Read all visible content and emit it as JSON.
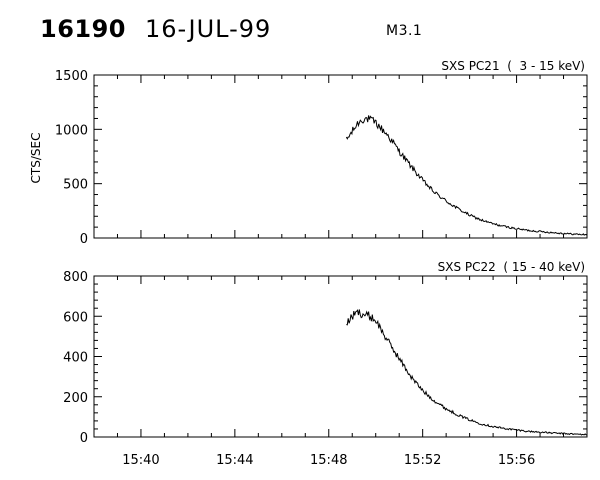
{
  "header": {
    "event_id": "16190",
    "date": "16-JUL-99",
    "flare_class": "M3.1"
  },
  "ylabel": "CTS/SEC",
  "x_tick_labels": [
    "15:40",
    "15:44",
    "15:48",
    "15:52",
    "15:56"
  ],
  "chart_data": [
    {
      "type": "line",
      "title": "SXS PC21  (  3 - 15 keV)",
      "ylabel": "CTS/SEC",
      "xlabel": "",
      "xlim": [
        "15:38",
        "15:59"
      ],
      "ylim": [
        0,
        1500
      ],
      "y_ticks": [
        0,
        500,
        1000,
        1500
      ],
      "x": [
        "15:48:45",
        "15:49:00",
        "15:49:15",
        "15:49:30",
        "15:49:45",
        "15:50:00",
        "15:50:30",
        "15:51:00",
        "15:51:30",
        "15:52:00",
        "15:52:30",
        "15:53:00",
        "15:53:30",
        "15:54:00",
        "15:54:30",
        "15:55:00",
        "15:55:30",
        "15:56:00",
        "15:56:30",
        "15:57:00",
        "15:57:30",
        "15:58:00",
        "15:58:30",
        "15:59:00"
      ],
      "values": [
        900,
        980,
        1060,
        1100,
        1090,
        1060,
        950,
        800,
        660,
        530,
        420,
        340,
        270,
        210,
        165,
        130,
        105,
        85,
        70,
        60,
        50,
        42,
        35,
        30
      ]
    },
    {
      "type": "line",
      "title": "SXS PC22  ( 15 - 40 keV)",
      "ylabel": "",
      "xlabel": "",
      "xlim": [
        "15:38",
        "15:59"
      ],
      "ylim": [
        0,
        800
      ],
      "y_ticks": [
        0,
        200,
        400,
        600,
        800
      ],
      "x": [
        "15:48:45",
        "15:49:00",
        "15:49:15",
        "15:49:30",
        "15:49:45",
        "15:50:00",
        "15:50:30",
        "15:51:00",
        "15:51:30",
        "15:52:00",
        "15:52:30",
        "15:53:00",
        "15:53:30",
        "15:54:00",
        "15:54:30",
        "15:55:00",
        "15:55:30",
        "15:56:00",
        "15:56:30",
        "15:57:00",
        "15:57:30",
        "15:58:00",
        "15:58:30",
        "15:59:00"
      ],
      "values": [
        560,
        600,
        620,
        610,
        600,
        580,
        480,
        390,
        300,
        230,
        180,
        140,
        110,
        85,
        65,
        52,
        42,
        35,
        28,
        24,
        20,
        17,
        14,
        12
      ]
    }
  ]
}
